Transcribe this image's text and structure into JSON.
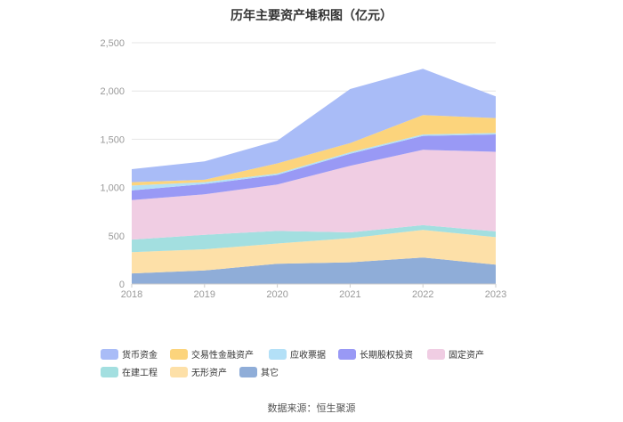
{
  "chart_data": {
    "type": "area",
    "stacked": true,
    "title": "历年主要资产堆积图（亿元）",
    "x": [
      "2018",
      "2019",
      "2020",
      "2021",
      "2022",
      "2023"
    ],
    "y_ticks": [
      "0",
      "500",
      "1,000",
      "1,500",
      "2,000",
      "2,500"
    ],
    "ylim": [
      0,
      2500
    ],
    "grid": true,
    "legend_position": "bottom",
    "series": [
      {
        "name": "其它",
        "color": "#8fadd8",
        "values": [
          110,
          140,
          210,
          225,
          275,
          200
        ]
      },
      {
        "name": "无形资产",
        "color": "#fde0a8",
        "values": [
          220,
          220,
          210,
          250,
          285,
          285
        ]
      },
      {
        "name": "在建工程",
        "color": "#a3dfe0",
        "values": [
          130,
          150,
          130,
          60,
          50,
          60
        ]
      },
      {
        "name": "固定资产",
        "color": "#f0cde3",
        "values": [
          410,
          420,
          480,
          690,
          780,
          825
        ]
      },
      {
        "name": "长期股权投资",
        "color": "#9999f5",
        "values": [
          100,
          105,
          100,
          125,
          145,
          180
        ]
      },
      {
        "name": "应收票据",
        "color": "#b3e0f7",
        "values": [
          50,
          20,
          15,
          15,
          15,
          15
        ]
      },
      {
        "name": "交易性金融资产",
        "color": "#fcd47c",
        "values": [
          35,
          25,
          105,
          95,
          200,
          155
        ]
      },
      {
        "name": "货币资金",
        "color": "#a9bcf7",
        "values": [
          135,
          190,
          235,
          560,
          480,
          225
        ]
      }
    ]
  },
  "legend_order": [
    "货币资金",
    "交易性金融资产",
    "应收票据",
    "长期股权投资",
    "固定资产",
    "在建工程",
    "无形资产",
    "其它"
  ],
  "source": "数据来源：恒生聚源"
}
